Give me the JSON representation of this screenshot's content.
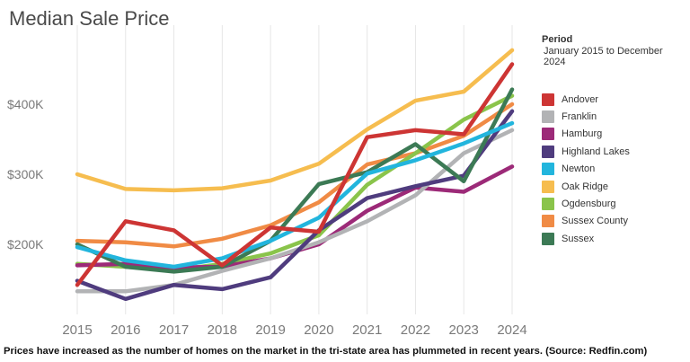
{
  "title": "Median Sale Price",
  "caption": "Prices have increased as the number of homes on the market in the tri-state area has plummeted in recent years. (Source: Redfin.com)",
  "legend": {
    "heading": "Period",
    "subheading": "January 2015 to December 2024"
  },
  "chart_data": {
    "type": "line",
    "title": "Median Sale Price",
    "xlabel": "",
    "ylabel": "",
    "x": [
      2015,
      2016,
      2017,
      2018,
      2019,
      2020,
      2021,
      2022,
      2023,
      2024
    ],
    "xticks": [
      "2015",
      "2016",
      "2017",
      "2018",
      "2019",
      "2020",
      "2021",
      "2022",
      "2023",
      "2024"
    ],
    "yticks": [
      {
        "value": 200000,
        "label": "$200K"
      },
      {
        "value": 300000,
        "label": "$300K"
      },
      {
        "value": 400000,
        "label": "$400K"
      }
    ],
    "ylim": [
      100000,
      500000
    ],
    "grid": "vertical",
    "legend_position": "right",
    "series": [
      {
        "name": "Oak Ridge",
        "color": "#f6bd4f",
        "values": [
          300000,
          279000,
          277000,
          280000,
          291000,
          315000,
          364000,
          405000,
          418000,
          477000
        ]
      },
      {
        "name": "Sussex County",
        "color": "#f08b45",
        "values": [
          205000,
          203000,
          197000,
          208000,
          227000,
          260000,
          314000,
          330000,
          355000,
          400000
        ]
      },
      {
        "name": "Ogdensburg",
        "color": "#8ac44b",
        "values": [
          172000,
          168000,
          163000,
          172000,
          187000,
          213000,
          285000,
          330000,
          378000,
          412000
        ]
      },
      {
        "name": "Hamburg",
        "color": "#9c2a78",
        "values": [
          170000,
          172000,
          167000,
          168000,
          180000,
          200000,
          248000,
          281000,
          275000,
          311000
        ]
      },
      {
        "name": "Franklin",
        "color": "#b2b3b5",
        "values": [
          133000,
          133000,
          142000,
          162000,
          180000,
          203000,
          233000,
          270000,
          330000,
          363000
        ]
      },
      {
        "name": "Highland Lakes",
        "color": "#4f3c7e",
        "values": [
          148000,
          122000,
          142000,
          136000,
          153000,
          220000,
          266000,
          283000,
          298000,
          390000
        ]
      },
      {
        "name": "Sussex",
        "color": "#3c7a55",
        "values": [
          200000,
          168000,
          161000,
          168000,
          205000,
          286000,
          303000,
          343000,
          290000,
          421000
        ]
      },
      {
        "name": "Newton",
        "color": "#22b5dd",
        "values": [
          196000,
          177000,
          168000,
          180000,
          205000,
          238000,
          301000,
          320000,
          344000,
          373000
        ]
      },
      {
        "name": "Andover",
        "color": "#cd3534",
        "values": [
          142000,
          233000,
          220000,
          170000,
          224000,
          218000,
          353000,
          363000,
          357000,
          457000
        ]
      }
    ]
  },
  "legend_items": [
    {
      "name": "Andover",
      "color": "#cd3534"
    },
    {
      "name": "Franklin",
      "color": "#b2b3b5"
    },
    {
      "name": "Hamburg",
      "color": "#9c2a78"
    },
    {
      "name": "Highland Lakes",
      "color": "#4f3c7e"
    },
    {
      "name": "Newton",
      "color": "#22b5dd"
    },
    {
      "name": "Oak Ridge",
      "color": "#f6bd4f"
    },
    {
      "name": "Ogdensburg",
      "color": "#8ac44b"
    },
    {
      "name": "Sussex County",
      "color": "#f08b45"
    },
    {
      "name": "Sussex",
      "color": "#3c7a55"
    }
  ]
}
